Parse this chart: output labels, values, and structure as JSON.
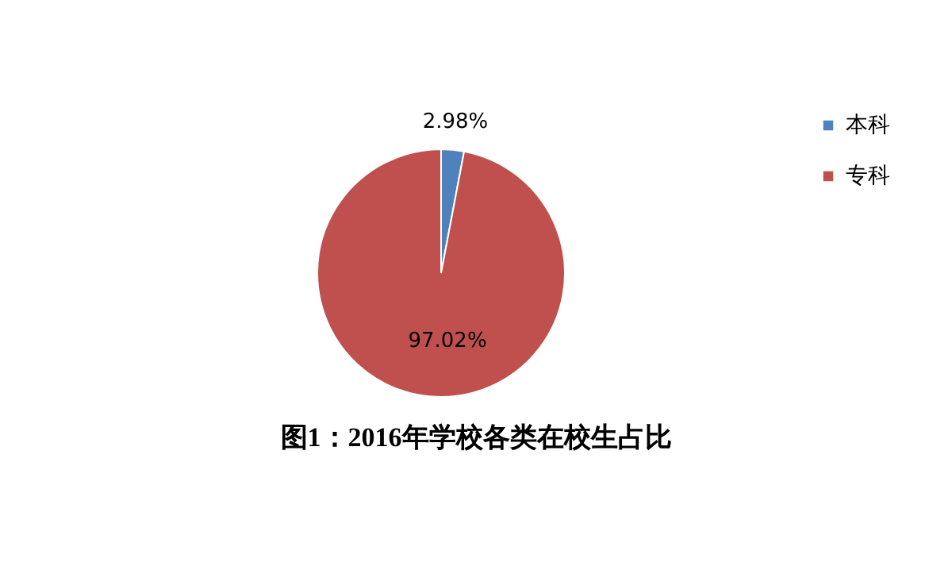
{
  "chart_data": {
    "type": "pie",
    "title": "图1：2016年学校各类在校生占比",
    "categories": [
      "本科",
      "专科"
    ],
    "values": [
      2.98,
      97.02
    ],
    "colors": [
      "#4f81bd",
      "#c0504d"
    ],
    "value_labels": [
      "2.98%",
      "97.02%"
    ],
    "legend": "right"
  }
}
